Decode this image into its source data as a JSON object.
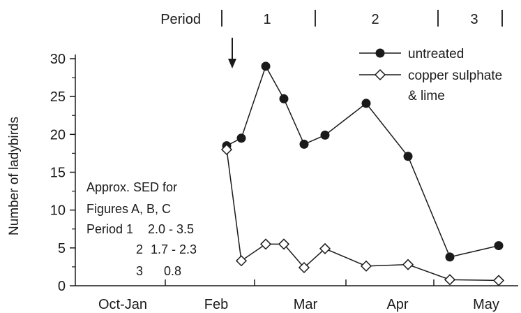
{
  "chart_data": {
    "type": "line",
    "xlabel": "",
    "ylabel": "Number of ladybirds",
    "ylim": [
      0,
      30
    ],
    "yticks": [
      0,
      5,
      10,
      15,
      20,
      25,
      30
    ],
    "month_labels": [
      "Oct-Jan",
      "Feb",
      "Mar",
      "Apr",
      "May"
    ],
    "periods": {
      "label": "Period",
      "names": [
        "1",
        "2",
        "3"
      ]
    },
    "treatment_marker": "arrow",
    "series": [
      {
        "name": "untreated",
        "marker": "filled-circle",
        "values": [
          18.5,
          19.5,
          29,
          24.7,
          18.7,
          19.9,
          24.1,
          17.1,
          3.8,
          5.3
        ]
      },
      {
        "name": "copper sulphate",
        "name_line2": "& lime",
        "marker": "open-diamond",
        "values": [
          18,
          3.3,
          5.5,
          5.5,
          2.4,
          4.9,
          2.6,
          2.8,
          0.8,
          0.7
        ]
      }
    ],
    "sed_note": {
      "lines": [
        "Approx. SED for",
        "Figures A, B, C"
      ],
      "rows": [
        {
          "period": "Period 1",
          "value": "2.0 - 3.5"
        },
        {
          "period": "2",
          "value": "1.7 - 2.3"
        },
        {
          "period": "3",
          "value": "0.8"
        }
      ]
    },
    "grid": false,
    "legend_position": "top-right"
  },
  "colors": {
    "line": "#1a1a1a",
    "marker_fill": "#1a1a1a",
    "open_marker_fill": "#ffffff"
  }
}
